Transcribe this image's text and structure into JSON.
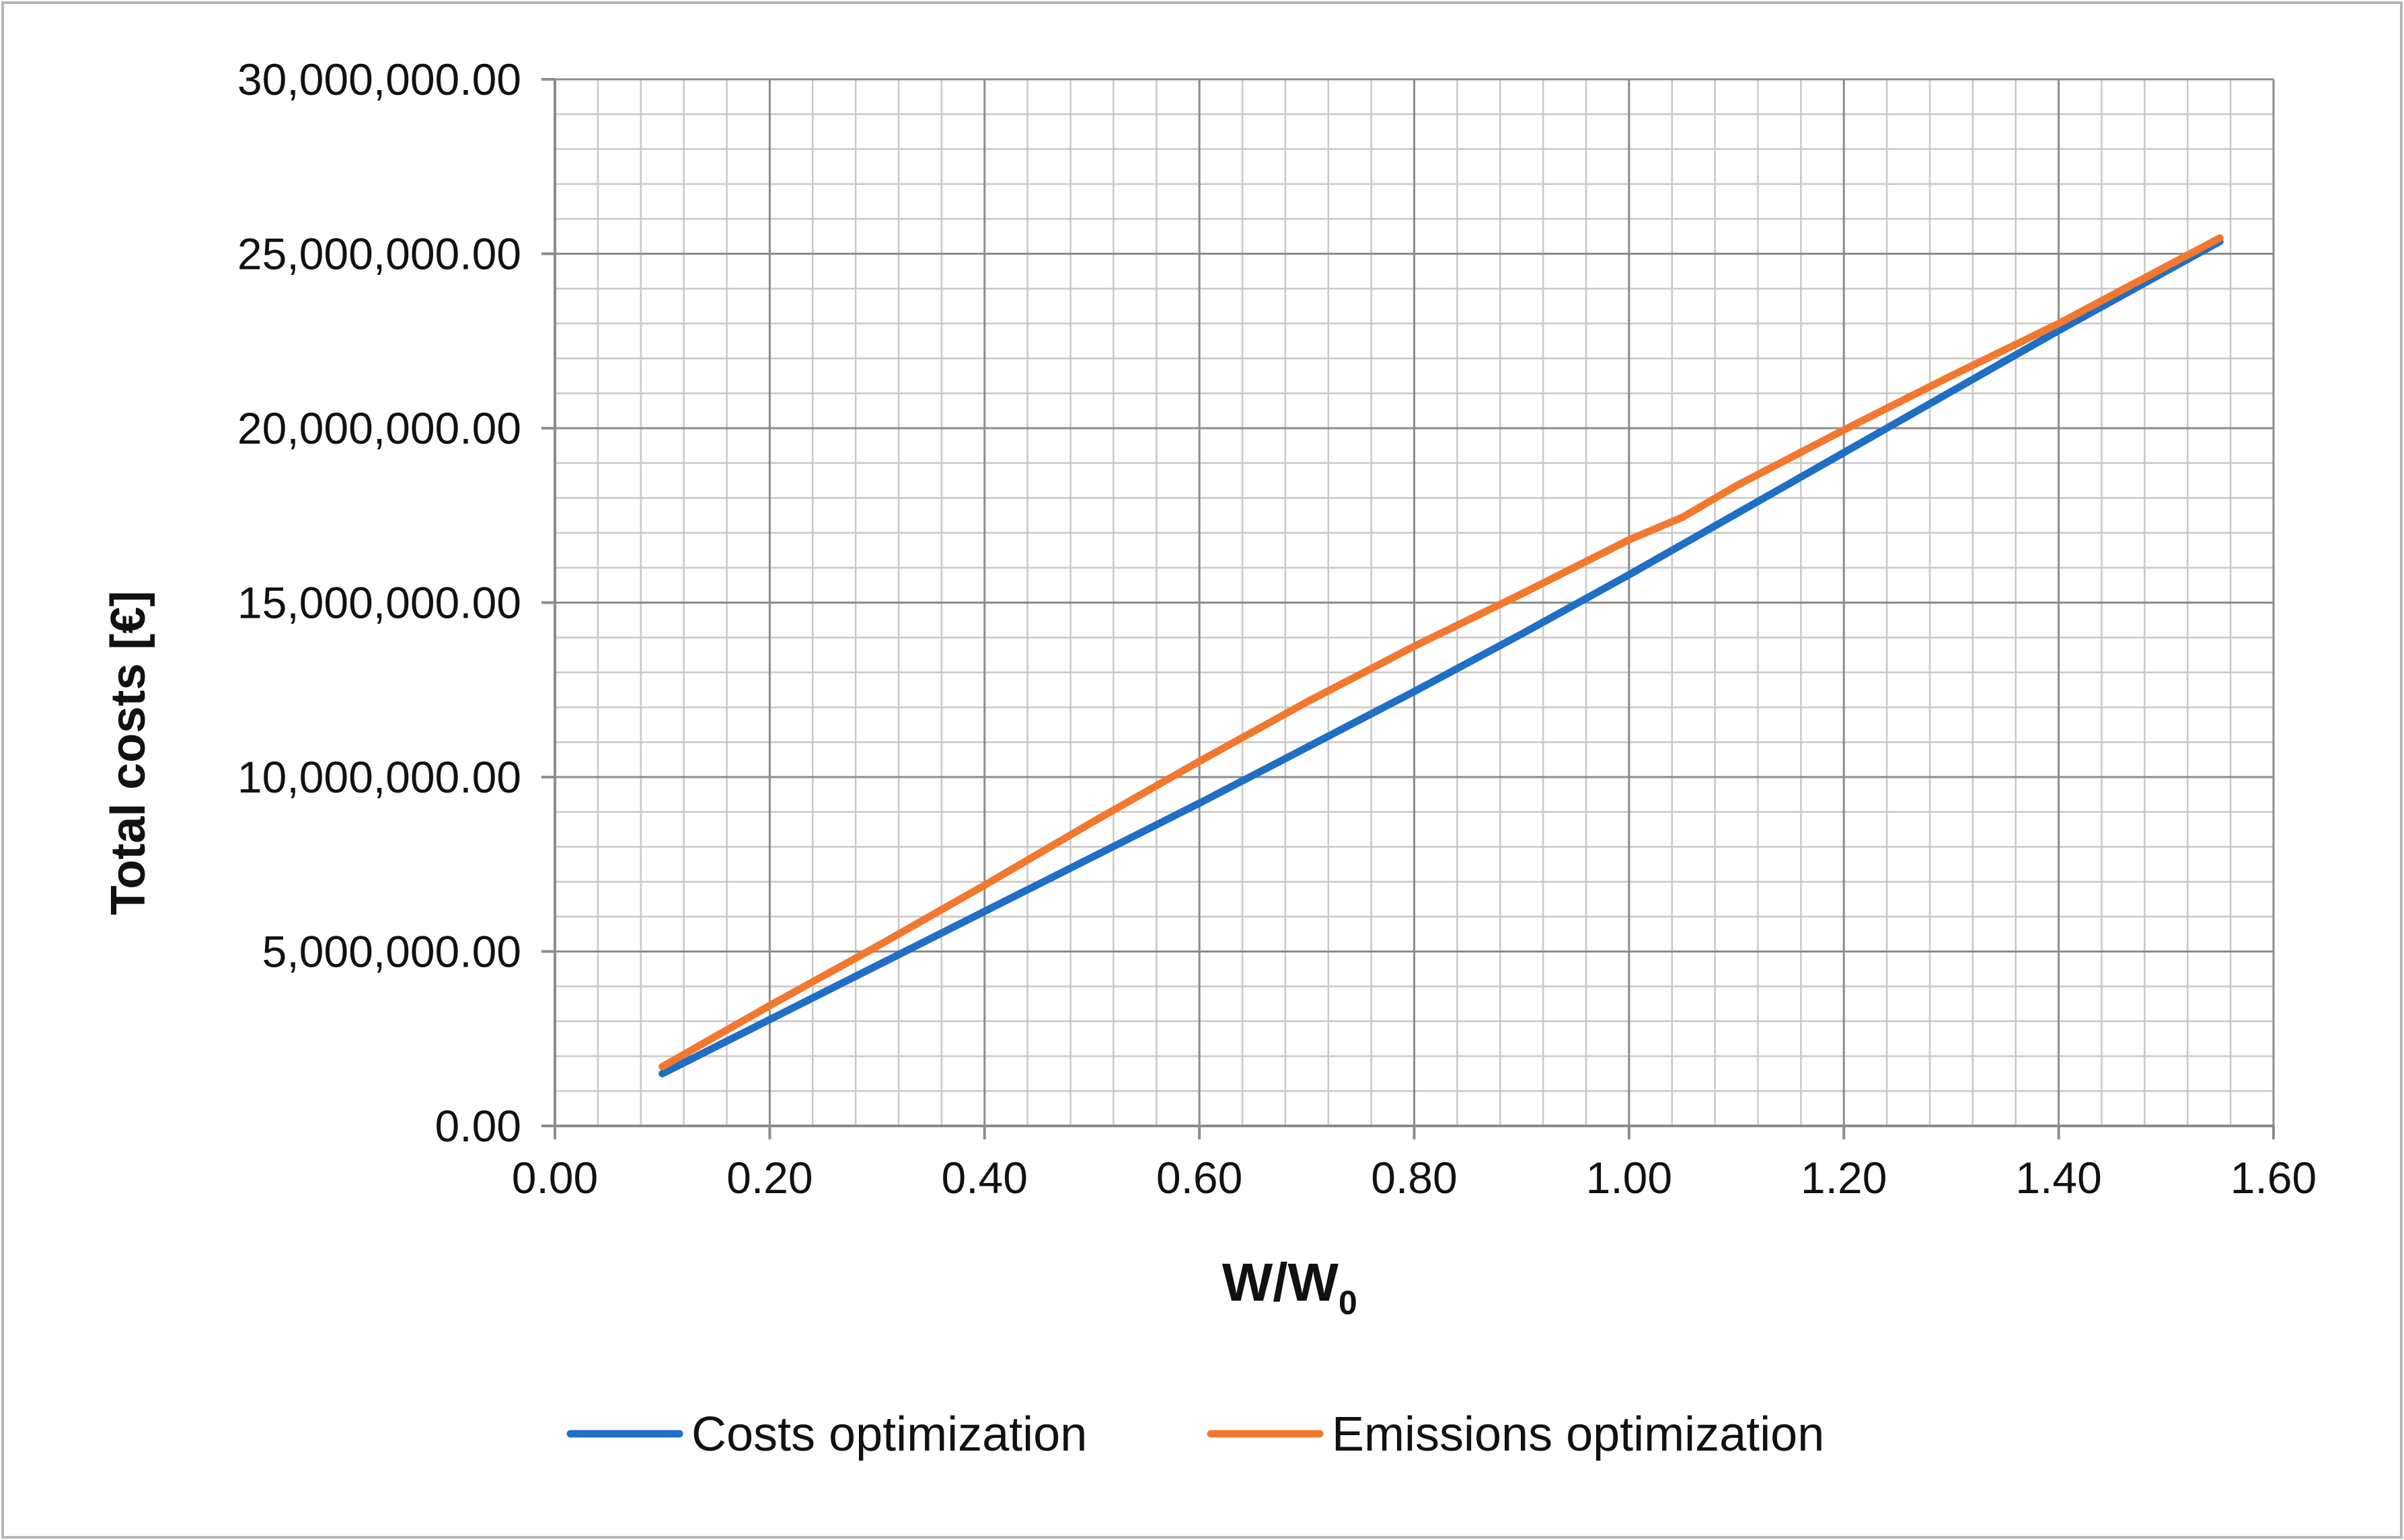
{
  "chart_data": {
    "type": "line",
    "xlabel_main": "W/W",
    "xlabel_sub": "0",
    "ylabel": "Total costs [€]",
    "xlim": [
      0.0,
      1.6
    ],
    "ylim": [
      0,
      30000000
    ],
    "x_ticks": [
      0.0,
      0.2,
      0.4,
      0.6,
      0.8,
      1.0,
      1.2,
      1.4,
      1.6
    ],
    "x_tick_labels": [
      "0.00",
      "0.20",
      "0.40",
      "0.60",
      "0.80",
      "1.00",
      "1.20",
      "1.40",
      "1.60"
    ],
    "y_ticks": [
      0,
      5000000,
      10000000,
      15000000,
      20000000,
      25000000,
      30000000
    ],
    "y_tick_labels": [
      "0.00",
      "5,000,000.00",
      "10,000,000.00",
      "15,000,000.00",
      "20,000,000.00",
      "25,000,000.00",
      "30,000,000.00"
    ],
    "x_minor_step": 0.04,
    "y_minor_step": 1000000,
    "grid": true,
    "legend_position": "bottom",
    "series": [
      {
        "name": "Costs optimization",
        "color": "#1F6FC4",
        "x": [
          0.1,
          0.2,
          0.3,
          0.4,
          0.5,
          0.6,
          0.7,
          0.8,
          0.9,
          1.0,
          1.1,
          1.2,
          1.3,
          1.4,
          1.55
        ],
        "y": [
          1500000,
          3050000,
          4600000,
          6150000,
          7700000,
          9250000,
          10850000,
          12450000,
          14100000,
          15800000,
          17550000,
          19300000,
          21050000,
          22800000,
          25350000
        ]
      },
      {
        "name": "Emissions optimization",
        "color": "#F2782F",
        "x": [
          0.1,
          0.2,
          0.3,
          0.4,
          0.5,
          0.6,
          0.7,
          0.8,
          0.9,
          1.0,
          1.05,
          1.1,
          1.2,
          1.3,
          1.4,
          1.55
        ],
        "y": [
          1700000,
          3450000,
          5150000,
          6900000,
          8700000,
          10450000,
          12150000,
          13750000,
          15250000,
          16800000,
          17450000,
          18350000,
          19950000,
          21500000,
          23000000,
          25450000
        ]
      }
    ]
  }
}
